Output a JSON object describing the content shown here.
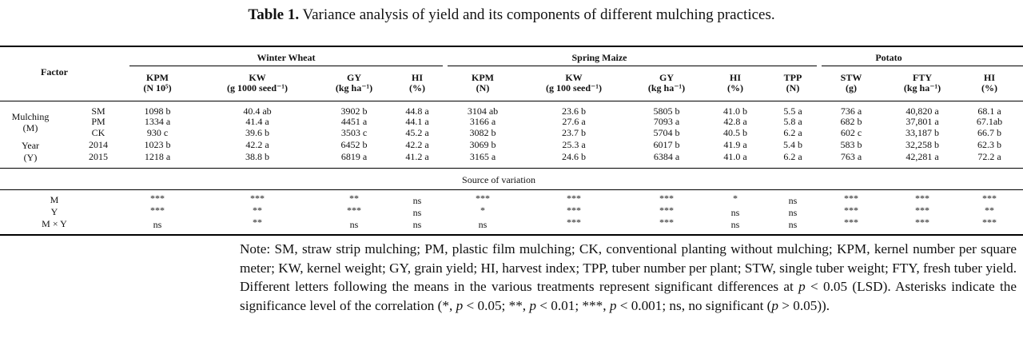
{
  "caption": {
    "label": "Table 1.",
    "text": " Variance analysis of yield and its components of different mulching practices."
  },
  "header": {
    "factor": "Factor",
    "groups": [
      "Winter Wheat",
      "Spring Maize",
      "Potato"
    ],
    "cols": [
      {
        "l1": "KPM",
        "l2": "(N 10⁵)"
      },
      {
        "l1": "KW",
        "l2": "(g 1000 seed⁻¹)"
      },
      {
        "l1": "GY",
        "l2": "(kg ha⁻¹)"
      },
      {
        "l1": "HI",
        "l2": "(%)"
      },
      {
        "l1": "KPM",
        "l2": "(N)"
      },
      {
        "l1": "KW",
        "l2": "(g 100 seed⁻¹)"
      },
      {
        "l1": "GY",
        "l2": "(kg ha⁻¹)"
      },
      {
        "l1": "HI",
        "l2": "(%)"
      },
      {
        "l1": "TPP",
        "l2": "(N)"
      },
      {
        "l1": "STW",
        "l2": "(g)"
      },
      {
        "l1": "FTY",
        "l2": "(kg ha⁻¹)"
      },
      {
        "l1": "HI",
        "l2": "(%)"
      }
    ]
  },
  "factors": [
    {
      "l1": "Mulching",
      "l2": "(M)"
    },
    {
      "l1": "Year",
      "l2": "(Y)"
    }
  ],
  "rows": [
    {
      "level": "SM",
      "values": [
        "1098 b",
        "40.4 ab",
        "3902 b",
        "44.8 a",
        "3104 ab",
        "23.6 b",
        "5805 b",
        "41.0 b",
        "5.5 a",
        "736 a",
        "40,820 a",
        "68.1 a"
      ]
    },
    {
      "level": "PM",
      "values": [
        "1334 a",
        "41.4 a",
        "4451 a",
        "44.1 a",
        "3166 a",
        "27.6 a",
        "7093 a",
        "42.8 a",
        "5.8 a",
        "682 b",
        "37,801 a",
        "67.1ab"
      ]
    },
    {
      "level": "CK",
      "values": [
        "930 c",
        "39.6 b",
        "3503 c",
        "45.2 a",
        "3082 b",
        "23.7 b",
        "5704 b",
        "40.5 b",
        "6.2 a",
        "602 c",
        "33,187 b",
        "66.7 b"
      ]
    },
    {
      "level": "2014",
      "values": [
        "1023 b",
        "42.2 a",
        "6452 b",
        "42.2 a",
        "3069 b",
        "25.3 a",
        "6017 b",
        "41.9 a",
        "5.4 b",
        "583 b",
        "32,258 b",
        "62.3 b"
      ]
    },
    {
      "level": "2015",
      "values": [
        "1218 a",
        "38.8 b",
        "6819 a",
        "41.2 a",
        "3165 a",
        "24.6 b",
        "6384 a",
        "41.0 a",
        "6.2 a",
        "763 a",
        "42,281 a",
        "72.2 a"
      ]
    }
  ],
  "source_label": "Source of variation",
  "sig_rows": [
    {
      "label": "M",
      "values": [
        "***",
        "***",
        "**",
        "ns",
        "***",
        "***",
        "***",
        "*",
        "ns",
        "***",
        "***",
        "***"
      ]
    },
    {
      "label": "Y",
      "values": [
        "***",
        "**",
        "***",
        "ns",
        "*",
        "***",
        "***",
        "ns",
        "ns",
        "***",
        "***",
        "**"
      ]
    },
    {
      "label": "M × Y",
      "values": [
        "ns",
        "**",
        "ns",
        "ns",
        "ns",
        "***",
        "***",
        "ns",
        "ns",
        "***",
        "***",
        "***"
      ]
    }
  ],
  "note": {
    "p1": "Note: SM, straw strip mulching; PM, plastic film mulching; CK, conventional planting without mulching; KPM, kernel number per square meter; KW, kernel weight; GY, grain yield; HI, harvest index; TPP, tuber number per plant; STW, single tuber weight; FTY, fresh tuber yield. Different letters following the means in the various treatments represent significant differences at ",
    "p_sym": "p",
    "p2": " < 0.05 (LSD). Asterisks indicate the significance level of the correlation (*, ",
    "p3": " < 0.05; **, ",
    "p4": " < 0.01; ***, ",
    "p5": " < 0.001; ns, no significant (",
    "p6": " > 0.05))."
  }
}
